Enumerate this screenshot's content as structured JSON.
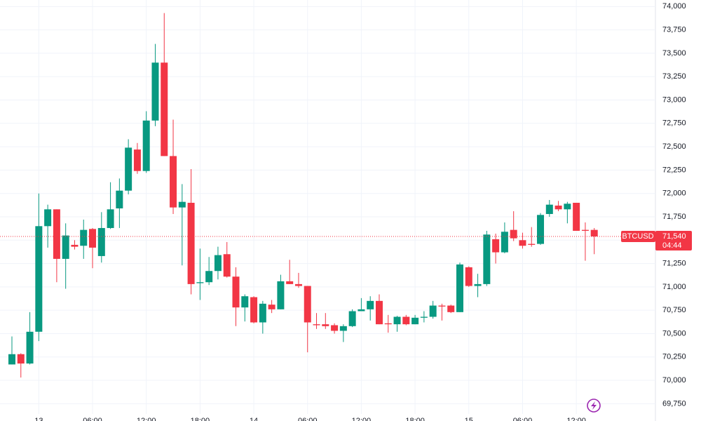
{
  "chart_data": {
    "type": "candlestick",
    "symbol": "BTCUSD",
    "last": {
      "value": 71540,
      "label": "71,540"
    },
    "countdown": "04:44",
    "up_color": "#089981",
    "down_color": "#f23645",
    "grid": true,
    "ylim": [
      69640,
      74070
    ],
    "yticks": [
      {
        "value": 69750,
        "label": "69,750"
      },
      {
        "value": 70000,
        "label": "70,000"
      },
      {
        "value": 70250,
        "label": "70,250"
      },
      {
        "value": 70500,
        "label": "70,500"
      },
      {
        "value": 70750,
        "label": "70,750"
      },
      {
        "value": 71000,
        "label": "71,000"
      },
      {
        "value": 71250,
        "label": "71,250"
      },
      {
        "value": 71500,
        "label": "71,500"
      },
      {
        "value": 71750,
        "label": "71,750"
      },
      {
        "value": 72000,
        "label": "72,000"
      },
      {
        "value": 72250,
        "label": "72,250"
      },
      {
        "value": 72500,
        "label": "72,500"
      },
      {
        "value": 72750,
        "label": "72,750"
      },
      {
        "value": 73000,
        "label": "73,000"
      },
      {
        "value": 73250,
        "label": "73,250"
      },
      {
        "value": 73500,
        "label": "73,500"
      },
      {
        "value": 73750,
        "label": "73,750"
      },
      {
        "value": 74000,
        "label": "74,000"
      }
    ],
    "categories": [
      null,
      null,
      null,
      "13",
      null,
      null,
      null,
      null,
      null,
      "06:00",
      null,
      null,
      null,
      null,
      null,
      "12:00",
      null,
      null,
      null,
      null,
      null,
      "18:00",
      null,
      null,
      null,
      null,
      null,
      "14",
      null,
      null,
      null,
      null,
      null,
      "06:00",
      null,
      null,
      null,
      null,
      null,
      "12:00",
      null,
      null,
      null,
      null,
      null,
      "18:00",
      null,
      null,
      null,
      null,
      null,
      "15",
      null,
      null,
      null,
      null,
      null,
      "06:00",
      null,
      null,
      null,
      null,
      null,
      "12:00",
      null,
      null
    ],
    "open": [
      70170,
      70280,
      70180,
      70520,
      71650,
      71830,
      71300,
      71450,
      71440,
      71620,
      71330,
      71630,
      71840,
      72030,
      72470,
      72240,
      72780,
      73400,
      72400,
      71850,
      71900,
      71040,
      71050,
      71170,
      71350,
      71110,
      70780,
      70890,
      70620,
      70810,
      70760,
      71060,
      71030,
      71010,
      70600,
      70600,
      70590,
      70530,
      70580,
      70740,
      70760,
      70850,
      70610,
      70600,
      70680,
      70600,
      70670,
      70680,
      70800,
      70800,
      70730,
      71210,
      71010,
      71030,
      71510,
      71370,
      71610,
      71500,
      71460,
      71460,
      71780,
      71870,
      71830,
      71900,
      71610,
      71610
    ],
    "close": [
      70280,
      70180,
      70520,
      71650,
      71830,
      71300,
      71550,
      71430,
      71610,
      71420,
      71630,
      71830,
      72030,
      72490,
      72240,
      72780,
      73400,
      72400,
      71850,
      71910,
      71030,
      71050,
      71170,
      71340,
      71110,
      70780,
      70900,
      70620,
      70820,
      70760,
      71060,
      71030,
      71010,
      70620,
      70590,
      70580,
      70530,
      70580,
      70740,
      70760,
      70850,
      70600,
      70600,
      70680,
      70600,
      70670,
      70680,
      70800,
      70790,
      70730,
      71240,
      71010,
      71030,
      71560,
      71370,
      71590,
      71520,
      71440,
      71450,
      71770,
      71880,
      71830,
      71890,
      71600,
      71600,
      71540
    ],
    "high": [
      70470,
      70290,
      70730,
      72000,
      71880,
      71830,
      71680,
      71500,
      71720,
      71630,
      71800,
      72120,
      72160,
      72580,
      72540,
      72880,
      73600,
      73930,
      72790,
      72100,
      72260,
      71410,
      71320,
      71430,
      71480,
      71210,
      70920,
      70900,
      70850,
      70860,
      71130,
      71290,
      71150,
      71010,
      70720,
      70720,
      70610,
      70600,
      70760,
      70880,
      70900,
      70920,
      70700,
      70690,
      70700,
      70700,
      70740,
      70850,
      70820,
      70810,
      71260,
      71220,
      71140,
      71600,
      71570,
      71690,
      71810,
      71580,
      71640,
      71790,
      71930,
      71920,
      71910,
      71900,
      71690,
      71630
    ],
    "low": [
      70170,
      70030,
      70170,
      70420,
      71420,
      71050,
      70980,
      71400,
      71300,
      71200,
      71260,
      71620,
      71630,
      71990,
      72210,
      72220,
      72720,
      72400,
      71780,
      71230,
      70920,
      70860,
      71020,
      71080,
      71100,
      70580,
      70630,
      70610,
      70500,
      70720,
      70760,
      71030,
      70990,
      70300,
      70550,
      70550,
      70500,
      70410,
      70570,
      70740,
      70640,
      70600,
      70510,
      70520,
      70590,
      70600,
      70620,
      70660,
      70640,
      70720,
      70730,
      71000,
      70890,
      71010,
      71250,
      71360,
      71490,
      71410,
      71430,
      71450,
      71750,
      71810,
      71680,
      71600,
      71280,
      71350
    ]
  }
}
